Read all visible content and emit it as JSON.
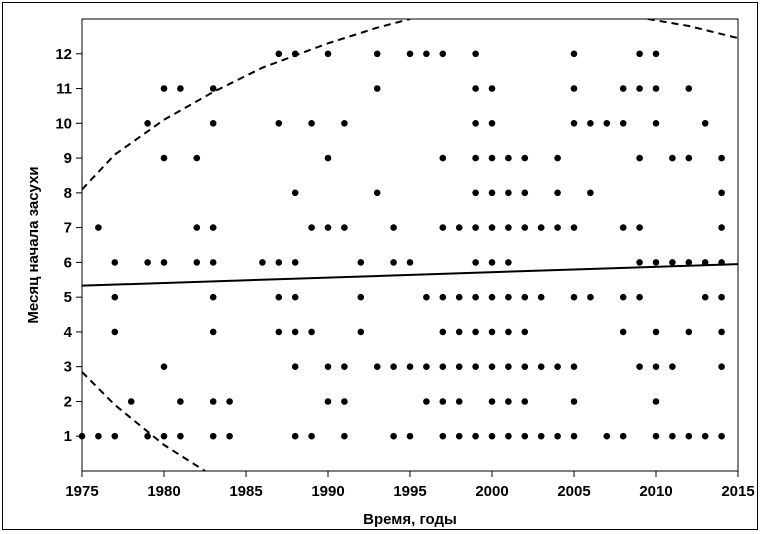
{
  "chart_data": {
    "type": "scatter",
    "title": "",
    "xlabel": "Время, годы",
    "ylabel": "Месяц начала засухи",
    "xlim": [
      1975,
      2015
    ],
    "ylim": [
      0,
      13
    ],
    "x_ticks": [
      1975,
      1980,
      1985,
      1990,
      1995,
      2000,
      2005,
      2010,
      2015
    ],
    "y_ticks": [
      1,
      2,
      3,
      4,
      5,
      6,
      7,
      8,
      9,
      10,
      11,
      12
    ],
    "grid": false,
    "legend": "none",
    "points": [
      [
        1975,
        1
      ],
      [
        1976,
        1
      ],
      [
        1976,
        7
      ],
      [
        1977,
        1
      ],
      [
        1977,
        4
      ],
      [
        1977,
        5
      ],
      [
        1977,
        6
      ],
      [
        1978,
        2
      ],
      [
        1979,
        1
      ],
      [
        1979,
        6
      ],
      [
        1979,
        10
      ],
      [
        1980,
        1
      ],
      [
        1980,
        3
      ],
      [
        1980,
        6
      ],
      [
        1980,
        9
      ],
      [
        1980,
        11
      ],
      [
        1981,
        1
      ],
      [
        1981,
        2
      ],
      [
        1981,
        11
      ],
      [
        1982,
        6
      ],
      [
        1982,
        7
      ],
      [
        1982,
        9
      ],
      [
        1983,
        1
      ],
      [
        1983,
        2
      ],
      [
        1983,
        4
      ],
      [
        1983,
        5
      ],
      [
        1983,
        6
      ],
      [
        1983,
        7
      ],
      [
        1983,
        10
      ],
      [
        1983,
        11
      ],
      [
        1984,
        1
      ],
      [
        1984,
        2
      ],
      [
        1986,
        6
      ],
      [
        1987,
        4
      ],
      [
        1987,
        5
      ],
      [
        1987,
        6
      ],
      [
        1987,
        10
      ],
      [
        1987,
        12
      ],
      [
        1988,
        1
      ],
      [
        1988,
        3
      ],
      [
        1988,
        4
      ],
      [
        1988,
        5
      ],
      [
        1988,
        6
      ],
      [
        1988,
        8
      ],
      [
        1988,
        12
      ],
      [
        1989,
        1
      ],
      [
        1989,
        4
      ],
      [
        1989,
        7
      ],
      [
        1989,
        10
      ],
      [
        1990,
        2
      ],
      [
        1990,
        3
      ],
      [
        1990,
        7
      ],
      [
        1990,
        9
      ],
      [
        1990,
        12
      ],
      [
        1991,
        1
      ],
      [
        1991,
        2
      ],
      [
        1991,
        3
      ],
      [
        1991,
        7
      ],
      [
        1991,
        10
      ],
      [
        1992,
        4
      ],
      [
        1992,
        5
      ],
      [
        1992,
        6
      ],
      [
        1993,
        3
      ],
      [
        1993,
        8
      ],
      [
        1993,
        11
      ],
      [
        1993,
        12
      ],
      [
        1994,
        1
      ],
      [
        1994,
        3
      ],
      [
        1994,
        6
      ],
      [
        1994,
        7
      ],
      [
        1995,
        1
      ],
      [
        1995,
        3
      ],
      [
        1995,
        6
      ],
      [
        1995,
        12
      ],
      [
        1996,
        2
      ],
      [
        1996,
        3
      ],
      [
        1996,
        5
      ],
      [
        1996,
        12
      ],
      [
        1997,
        1
      ],
      [
        1997,
        2
      ],
      [
        1997,
        3
      ],
      [
        1997,
        4
      ],
      [
        1997,
        5
      ],
      [
        1997,
        7
      ],
      [
        1997,
        9
      ],
      [
        1997,
        12
      ],
      [
        1998,
        1
      ],
      [
        1998,
        2
      ],
      [
        1998,
        3
      ],
      [
        1998,
        4
      ],
      [
        1998,
        5
      ],
      [
        1998,
        7
      ],
      [
        1999,
        1
      ],
      [
        1999,
        3
      ],
      [
        1999,
        4
      ],
      [
        1999,
        5
      ],
      [
        1999,
        6
      ],
      [
        1999,
        7
      ],
      [
        1999,
        8
      ],
      [
        1999,
        9
      ],
      [
        1999,
        10
      ],
      [
        1999,
        11
      ],
      [
        1999,
        12
      ],
      [
        2000,
        1
      ],
      [
        2000,
        2
      ],
      [
        2000,
        3
      ],
      [
        2000,
        4
      ],
      [
        2000,
        5
      ],
      [
        2000,
        6
      ],
      [
        2000,
        7
      ],
      [
        2000,
        8
      ],
      [
        2000,
        9
      ],
      [
        2000,
        10
      ],
      [
        2000,
        11
      ],
      [
        2001,
        1
      ],
      [
        2001,
        2
      ],
      [
        2001,
        3
      ],
      [
        2001,
        4
      ],
      [
        2001,
        5
      ],
      [
        2001,
        6
      ],
      [
        2001,
        7
      ],
      [
        2001,
        8
      ],
      [
        2001,
        9
      ],
      [
        2002,
        1
      ],
      [
        2002,
        2
      ],
      [
        2002,
        3
      ],
      [
        2002,
        4
      ],
      [
        2002,
        5
      ],
      [
        2002,
        7
      ],
      [
        2002,
        8
      ],
      [
        2002,
        9
      ],
      [
        2003,
        1
      ],
      [
        2003,
        3
      ],
      [
        2003,
        5
      ],
      [
        2003,
        7
      ],
      [
        2004,
        1
      ],
      [
        2004,
        3
      ],
      [
        2004,
        7
      ],
      [
        2004,
        8
      ],
      [
        2004,
        9
      ],
      [
        2005,
        1
      ],
      [
        2005,
        2
      ],
      [
        2005,
        3
      ],
      [
        2005,
        5
      ],
      [
        2005,
        7
      ],
      [
        2005,
        10
      ],
      [
        2005,
        11
      ],
      [
        2005,
        12
      ],
      [
        2006,
        5
      ],
      [
        2006,
        8
      ],
      [
        2006,
        10
      ],
      [
        2007,
        1
      ],
      [
        2007,
        10
      ],
      [
        2008,
        1
      ],
      [
        2008,
        4
      ],
      [
        2008,
        5
      ],
      [
        2008,
        7
      ],
      [
        2008,
        10
      ],
      [
        2008,
        11
      ],
      [
        2009,
        3
      ],
      [
        2009,
        5
      ],
      [
        2009,
        6
      ],
      [
        2009,
        7
      ],
      [
        2009,
        9
      ],
      [
        2009,
        11
      ],
      [
        2009,
        12
      ],
      [
        2010,
        1
      ],
      [
        2010,
        2
      ],
      [
        2010,
        3
      ],
      [
        2010,
        4
      ],
      [
        2010,
        6
      ],
      [
        2010,
        10
      ],
      [
        2010,
        11
      ],
      [
        2010,
        12
      ],
      [
        2011,
        1
      ],
      [
        2011,
        3
      ],
      [
        2011,
        6
      ],
      [
        2011,
        9
      ],
      [
        2012,
        1
      ],
      [
        2012,
        4
      ],
      [
        2012,
        6
      ],
      [
        2012,
        9
      ],
      [
        2012,
        11
      ],
      [
        2013,
        1
      ],
      [
        2013,
        5
      ],
      [
        2013,
        6
      ],
      [
        2013,
        10
      ],
      [
        2014,
        1
      ],
      [
        2014,
        3
      ],
      [
        2014,
        4
      ],
      [
        2014,
        5
      ],
      [
        2014,
        6
      ],
      [
        2014,
        7
      ],
      [
        2014,
        8
      ],
      [
        2014,
        9
      ]
    ],
    "trend_line": {
      "style": "solid",
      "x": [
        1975,
        2015
      ],
      "y": [
        5.33,
        5.95
      ]
    },
    "confidence_bands": [
      {
        "style": "dashed",
        "x": [
          1975,
          1977,
          1980,
          1983,
          1986,
          1990,
          1993,
          1995
        ],
        "y": [
          8.1,
          9.1,
          10.1,
          10.9,
          11.6,
          12.3,
          12.75,
          13.0
        ]
      },
      {
        "style": "dashed",
        "x": [
          2009.5,
          2012,
          2015
        ],
        "y": [
          13.0,
          12.8,
          12.45
        ]
      },
      {
        "style": "dashed",
        "x": [
          1975,
          1977,
          1980,
          1982.5
        ],
        "y": [
          2.85,
          1.9,
          0.75,
          0.0
        ]
      }
    ],
    "colors": {
      "points": "#000000",
      "lines": "#000000",
      "frame": "#000000"
    }
  }
}
